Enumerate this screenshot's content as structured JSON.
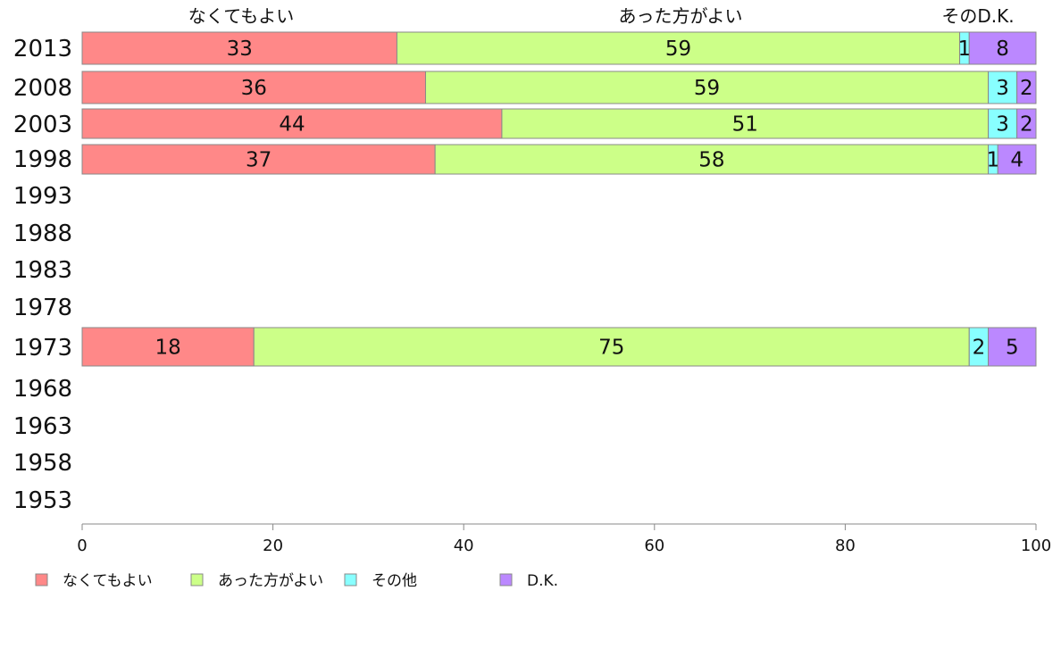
{
  "chart_data": {
    "type": "bar",
    "orientation": "horizontal",
    "stacked": true,
    "categories": [
      "2013",
      "2008",
      "2003",
      "1998",
      "1993",
      "1988",
      "1983",
      "1978",
      "1973",
      "1968",
      "1963",
      "1958",
      "1953"
    ],
    "series": [
      {
        "name": "なくてもよい",
        "color": "#ff8888",
        "values": [
          33,
          36,
          44,
          37,
          null,
          null,
          null,
          null,
          18,
          null,
          null,
          null,
          null
        ]
      },
      {
        "name": "あった方がよい",
        "color": "#ccff88",
        "values": [
          59,
          59,
          51,
          58,
          null,
          null,
          null,
          null,
          75,
          null,
          null,
          null,
          null
        ]
      },
      {
        "name": "その他",
        "color": "#88ffff",
        "values": [
          1,
          3,
          3,
          1,
          null,
          null,
          null,
          null,
          2,
          null,
          null,
          null,
          null
        ]
      },
      {
        "name": "D.K.",
        "color": "#bb88ff",
        "values": [
          8,
          2,
          2,
          4,
          null,
          null,
          null,
          null,
          5,
          null,
          null,
          null,
          null
        ]
      }
    ],
    "top_labels": [
      "なくてもよい",
      "あった方がよい",
      "そのD.K."
    ],
    "xlim": [
      0,
      100
    ],
    "xticks": [
      0,
      20,
      40,
      60,
      80,
      100
    ],
    "grid": false,
    "legend_position": "bottom-left"
  }
}
